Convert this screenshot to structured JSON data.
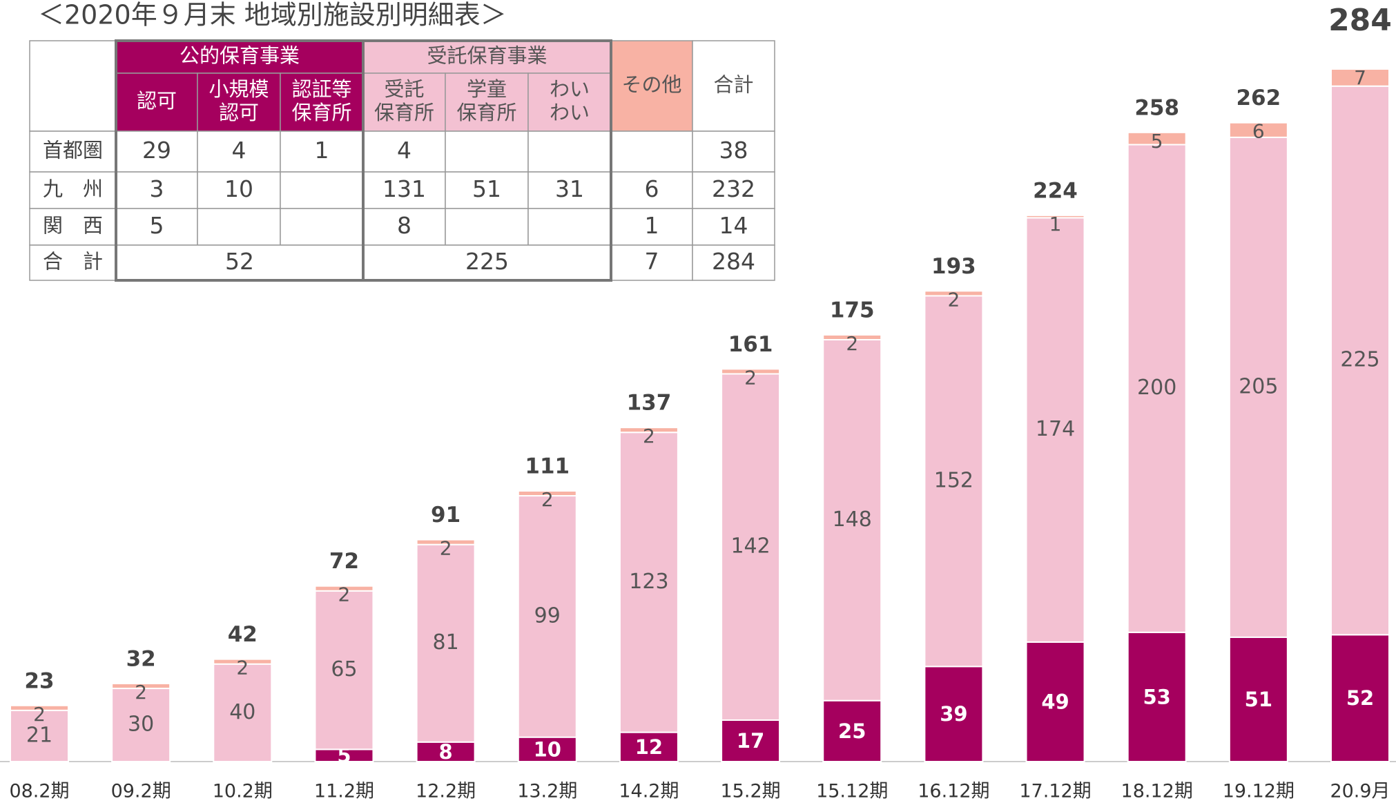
{
  "title": "＜2020年９月末 地域別施設別明細表＞",
  "table": {
    "groups": [
      "公的保育事業",
      "受託保育事業"
    ],
    "other_header": "その他",
    "total_header": "合計",
    "sub_headers": [
      [
        "認可"
      ],
      [
        "小規模",
        "認可"
      ],
      [
        "認証等",
        "保育所"
      ],
      [
        "受託",
        "保育所"
      ],
      [
        "学童",
        "保育所"
      ],
      [
        "わい",
        "わい"
      ]
    ],
    "rows": [
      {
        "label": "首都圏",
        "cells": [
          29,
          4,
          1,
          4,
          null,
          null,
          null,
          38
        ]
      },
      {
        "label": "九　州",
        "cells": [
          3,
          10,
          null,
          131,
          51,
          31,
          6,
          232
        ]
      },
      {
        "label": "関　西",
        "cells": [
          5,
          null,
          null,
          8,
          null,
          null,
          1,
          14
        ]
      }
    ],
    "total_row": {
      "label": "合　計",
      "cells": [
        52,
        225,
        7,
        284
      ]
    }
  },
  "chart_data": {
    "type": "stacked_bar",
    "categories": [
      "08.2期",
      "09.2期",
      "10.2期",
      "11.2期",
      "12.2期",
      "13.2期",
      "14.2期",
      "15.2期",
      "15.12期",
      "16.12期",
      "17.12期",
      "18.12期",
      "19.12期",
      "20.9月"
    ],
    "series": [
      {
        "color": "#a5005e",
        "values": [
          null,
          null,
          null,
          5,
          8,
          10,
          12,
          17,
          25,
          39,
          49,
          53,
          51,
          52
        ]
      },
      {
        "color": "#f3c1d2",
        "values": [
          21,
          30,
          40,
          65,
          81,
          99,
          123,
          142,
          148,
          152,
          174,
          200,
          205,
          225
        ]
      },
      {
        "color": "#f8b2a4",
        "values": [
          2,
          2,
          2,
          2,
          2,
          2,
          2,
          2,
          2,
          2,
          1,
          5,
          6,
          7
        ]
      }
    ],
    "totals": [
      23,
      32,
      42,
      72,
      91,
      111,
      137,
      161,
      175,
      193,
      224,
      258,
      262,
      284
    ]
  }
}
